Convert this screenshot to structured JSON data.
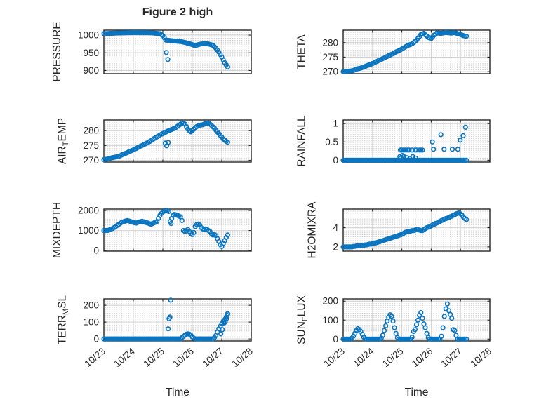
{
  "figure": {
    "title": "Figure 2 high",
    "xlabel": "Time",
    "marker_color": "#0B74BE",
    "axes_color": "#262626",
    "grid_color": "#D2D2D2",
    "minor_grid_color": "#BDBDBD",
    "background": "#FFFFFF"
  },
  "time_axis": {
    "xlim": [
      0,
      5
    ],
    "tick_positions": [
      0,
      1,
      2,
      3,
      4,
      5
    ],
    "tick_labels": [
      "10/23",
      "10/24",
      "10/25",
      "10/26",
      "10/27",
      "10/28"
    ]
  },
  "t_base": [
    0,
    0.05,
    0.1,
    0.15,
    0.2,
    0.25,
    0.3,
    0.35,
    0.4,
    0.45,
    0.5,
    0.55,
    0.6,
    0.65,
    0.7,
    0.75,
    0.8,
    0.85,
    0.9,
    0.95,
    1,
    1.05,
    1.1,
    1.15,
    1.2,
    1.25,
    1.3,
    1.35,
    1.4,
    1.45,
    1.5,
    1.55,
    1.6,
    1.65,
    1.7,
    1.75,
    1.8,
    1.85,
    1.9,
    1.95,
    2,
    2.05,
    2.1,
    2.15,
    2.2,
    2.25,
    2.3,
    2.35,
    2.4,
    2.45,
    2.5,
    2.55,
    2.6,
    2.65,
    2.7,
    2.75,
    2.8,
    2.85,
    2.9,
    2.95,
    3,
    3.05,
    3.1,
    3.15,
    3.2,
    3.25,
    3.3,
    3.35,
    3.4,
    3.45,
    3.5,
    3.55,
    3.6,
    3.65,
    3.7,
    3.75,
    3.8,
    3.85,
    3.9,
    3.95,
    4,
    4.05,
    4.1,
    4.15,
    4.2
  ],
  "chart_data": [
    {
      "type": "scatter",
      "name": "pressure",
      "ylabel": [
        [
          "PRESSURE",
          0
        ]
      ],
      "yticks": [
        900,
        950,
        1000
      ],
      "ylim": [
        891,
        1014
      ],
      "show_xticklabels": false,
      "y": [
        1004,
        1004.2,
        1004.4,
        1004.6,
        1004.8,
        1005,
        1005.2,
        1005.4,
        1005.6,
        1005.8,
        1006,
        1006.1,
        1006.2,
        1006.3,
        1006.4,
        1006.5,
        1006.6,
        1006.7,
        1006.8,
        1006.9,
        1007,
        1007,
        1006.9,
        1006.9,
        1006.8,
        1006.8,
        1006.7,
        1006.7,
        1006.7,
        1006.6,
        1006.6,
        1006.5,
        1006.5,
        1006.1,
        1005.7,
        1005.3,
        1004.8,
        1004.4,
        1004,
        1001.5,
        999,
        992.5,
        986,
        985.5,
        985,
        984.5,
        984,
        983.7,
        983.3,
        983,
        982.7,
        982.3,
        982,
        981,
        980,
        979,
        978,
        976.8,
        975.5,
        974.3,
        973,
        971.5,
        970,
        971.5,
        973,
        974,
        975,
        975.5,
        976,
        975.7,
        975.3,
        975,
        973.7,
        972.3,
        971,
        967,
        963,
        957.5,
        952,
        945,
        938,
        930,
        922,
        916,
        910
      ],
      "x_extra": [
        2.12,
        2.17
      ],
      "y_extra": [
        951,
        931
      ]
    },
    {
      "type": "scatter",
      "name": "theta",
      "ylabel": [
        [
          "THETA",
          0
        ]
      ],
      "yticks": [
        270,
        275,
        280
      ],
      "ylim": [
        269.3,
        284.3
      ],
      "show_xticklabels": false,
      "y": [
        270,
        270,
        270.1,
        270.1,
        270.2,
        270.2,
        270.3,
        270.4,
        270.6,
        270.9,
        271,
        271.1,
        271.2,
        271.4,
        271.6,
        271.8,
        272,
        272.2,
        272.4,
        272.6,
        272.8,
        273,
        273.3,
        273.5,
        273.8,
        274,
        274.2,
        274.5,
        274.7,
        275,
        275.2,
        275.5,
        275.7,
        276,
        276.2,
        276.5,
        276.8,
        277,
        277.3,
        277.5,
        277.8,
        278.1,
        278.4,
        278.7,
        279,
        279.2,
        279.4,
        279.6,
        280,
        280.4,
        280.8,
        281.5,
        282.1,
        282.8,
        283,
        283.2,
        282.7,
        282.3,
        281.8,
        281.6,
        281.4,
        282,
        282.6,
        283,
        283.4,
        283.3,
        283.2,
        283.2,
        283.3,
        283.4,
        283.5,
        283.4,
        283.4,
        283.3,
        283.3,
        283.4,
        283.4,
        283.3,
        283.1,
        283,
        282.8,
        282.6,
        282.4,
        282.3,
        282.2
      ],
      "x_extra": [],
      "y_extra": []
    },
    {
      "type": "scatter",
      "name": "air-temp",
      "ylabel": [
        [
          "AIR",
          0
        ],
        [
          "T",
          1
        ],
        [
          "EMP",
          0
        ]
      ],
      "yticks": [
        270,
        275,
        280
      ],
      "ylim": [
        269.4,
        283.6
      ],
      "show_xticklabels": false,
      "y": [
        270.2,
        270.3,
        270.4,
        270.5,
        270.6,
        270.8,
        270.9,
        271,
        271.1,
        271.2,
        271.3,
        271.5,
        271.8,
        272,
        272.2,
        272.4,
        272.6,
        272.9,
        273.1,
        273.3,
        273.5,
        273.8,
        274,
        274.3,
        274.5,
        274.8,
        275,
        275.3,
        275.5,
        275.8,
        276,
        276.3,
        276.6,
        276.9,
        277.3,
        277.6,
        277.9,
        278.2,
        278.5,
        278.8,
        279,
        279.3,
        279.5,
        279.8,
        280,
        280.2,
        280.4,
        280.6,
        280.8,
        281.1,
        281.5,
        281.8,
        282.2,
        282.6,
        282.4,
        282.2,
        281.4,
        280.5,
        280,
        279.6,
        280,
        280.5,
        281,
        281.4,
        281.6,
        281.8,
        281.9,
        282,
        282.2,
        282.4,
        282.5,
        282.6,
        282.2,
        281.8,
        281.3,
        280.8,
        280.2,
        279.6,
        279,
        278.4,
        277.8,
        277.2,
        276.8,
        276.4,
        276.1
      ],
      "x_extra": [
        2.08,
        2.13,
        2.18
      ],
      "y_extra": [
        275.8,
        274.9,
        276
      ]
    },
    {
      "type": "scatter",
      "name": "rainfall",
      "ylabel": [
        [
          "RAINFALL",
          0
        ]
      ],
      "yticks": [
        0,
        0.5,
        1
      ],
      "ylim": [
        -0.05,
        1.1
      ],
      "show_xticklabels": false,
      "y": [
        0,
        0,
        0,
        0,
        0,
        0,
        0,
        0,
        0,
        0,
        0,
        0,
        0,
        0,
        0,
        0,
        0,
        0,
        0,
        0,
        0,
        0,
        0,
        0,
        0,
        0,
        0,
        0,
        0,
        0,
        0,
        0,
        0,
        0,
        0,
        0,
        0,
        0,
        0,
        0,
        0,
        0,
        0,
        0,
        0,
        0,
        0,
        0,
        0,
        0,
        0,
        0,
        0,
        0,
        0,
        0,
        0,
        0,
        0,
        0,
        0,
        0,
        0,
        0,
        0,
        0,
        0,
        0,
        0,
        0,
        0,
        0,
        0,
        0,
        0,
        0,
        0,
        0,
        0,
        0,
        0,
        0,
        0,
        0,
        0
      ],
      "x_extra": [
        1.93,
        1.97,
        2.02,
        2.07,
        2.17,
        2.27,
        2.37,
        2.47,
        1.95,
        2,
        2.05,
        2.1,
        2.15,
        2.2,
        2.25,
        2.35,
        2.45,
        2.5,
        2.6,
        2.65,
        2.7,
        3.04,
        3.08,
        3.33,
        3.44,
        3.72,
        3.91,
        3.99,
        4.09,
        4.17
      ],
      "y_extra": [
        0.1,
        0.06,
        0.13,
        0.1,
        0.07,
        0.05,
        0.1,
        0.06,
        0.28,
        0.28,
        0.28,
        0.28,
        0.28,
        0.28,
        0.28,
        0.28,
        0.28,
        0.28,
        0.28,
        0.28,
        0.28,
        0.5,
        0.3,
        0.7,
        0.3,
        0.3,
        0.3,
        0.55,
        0.67,
        0.9
      ]
    },
    {
      "type": "scatter",
      "name": "mixdepth",
      "ylabel": [
        [
          "MIXDEPTH",
          0
        ]
      ],
      "yticks": [
        0,
        1000,
        2000
      ],
      "ylim": [
        -30,
        2070
      ],
      "show_xticklabels": false,
      "y": [
        1000,
        1000,
        1005,
        1010,
        1040,
        1070,
        1100,
        1150,
        1200,
        1250,
        1300,
        1350,
        1400,
        1430,
        1460,
        1480,
        1500,
        1475,
        1450,
        1425,
        1400,
        1385,
        1370,
        1400,
        1430,
        1445,
        1460,
        1435,
        1410,
        1390,
        1370,
        1340,
        1310,
        1345,
        1380,
        1415,
        1450,
        1600,
        1750,
        1850,
        1930,
        1960,
        2000,
        1980,
        1950,
        1450,
        1600,
        1750,
        1800,
        1780,
        1750,
        1720,
        1680,
        1500,
        1000,
        950,
        1000,
        1050,
        950,
        850,
        800,
        900,
        1200,
        1300,
        1320,
        1280,
        1150,
        1080,
        1050,
        1080,
        1050,
        1000,
        950,
        850,
        780,
        800,
        750,
        600,
        450,
        300,
        200,
        350,
        500,
        650,
        780
      ],
      "x_extra": [
        2.28
      ],
      "y_extra": [
        1350
      ]
    },
    {
      "type": "scatter",
      "name": "h2omixra",
      "ylabel": [
        [
          "H2OMIXRA",
          0
        ]
      ],
      "yticks": [
        2,
        4
      ],
      "ylim": [
        1.55,
        5.95
      ],
      "show_xticklabels": false,
      "y": [
        2,
        2,
        2,
        2,
        2,
        2,
        2,
        2.05,
        2.05,
        2.1,
        2.1,
        2.1,
        2.15,
        2.15,
        2.15,
        2.2,
        2.2,
        2.25,
        2.3,
        2.3,
        2.35,
        2.4,
        2.4,
        2.45,
        2.5,
        2.55,
        2.6,
        2.65,
        2.7,
        2.75,
        2.8,
        2.85,
        2.9,
        2.95,
        3,
        3.05,
        3.1,
        3.15,
        3.2,
        3.25,
        3.3,
        3.4,
        3.5,
        3.55,
        3.6,
        3.6,
        3.65,
        3.7,
        3.7,
        3.75,
        3.8,
        3.8,
        3.75,
        3.7,
        3.7,
        3.8,
        3.9,
        4,
        4.05,
        4.1,
        4.2,
        4.3,
        4.35,
        4.45,
        4.5,
        4.6,
        4.65,
        4.75,
        4.8,
        4.9,
        4.95,
        5,
        5.05,
        5.15,
        5.2,
        5.3,
        5.35,
        5.45,
        5.5,
        5.55,
        5.45,
        5.3,
        5.1,
        4.95,
        4.85
      ],
      "x_extra": [],
      "y_extra": []
    },
    {
      "type": "scatter",
      "name": "terr-msl",
      "ylabel": [
        [
          "TERR",
          0
        ],
        [
          "M",
          1
        ],
        [
          "SL",
          0
        ]
      ],
      "yticks": [
        0,
        100,
        200
      ],
      "ylim": [
        -12,
        238
      ],
      "show_xticklabels": true,
      "y": [
        0,
        0,
        0,
        0,
        0,
        0,
        0,
        0,
        0,
        0,
        0,
        0,
        0,
        0,
        0,
        0,
        0,
        0,
        0,
        0,
        0,
        0,
        0,
        0,
        0,
        0,
        0,
        0,
        0,
        0,
        0,
        0,
        0,
        0,
        0,
        0,
        0,
        0,
        0,
        0,
        0,
        0,
        0,
        0,
        0,
        0,
        0,
        0,
        0,
        0,
        0,
        0,
        0,
        8,
        15,
        22,
        28,
        30,
        28,
        22,
        12,
        5,
        0,
        0,
        0,
        0,
        0,
        0,
        0,
        0,
        0,
        0,
        0,
        0,
        0,
        8,
        20,
        40,
        60,
        75,
        90,
        105,
        115,
        130,
        148
      ],
      "x_extra": [
        2.18,
        2.21,
        2.24,
        2.27,
        3.97,
        4.02,
        4.08,
        4.12,
        4.16,
        4.18,
        4.2
      ],
      "y_extra": [
        60,
        120,
        130,
        230,
        30,
        55,
        95,
        100,
        120,
        140,
        150
      ]
    },
    {
      "type": "scatter",
      "name": "sun-flux",
      "ylabel": [
        [
          "SUN",
          0
        ],
        [
          "F",
          1
        ],
        [
          "LUX",
          0
        ]
      ],
      "yticks": [
        0,
        100,
        200
      ],
      "ylim": [
        -10,
        212
      ],
      "show_xticklabels": true,
      "y": [
        0,
        0,
        0,
        0,
        0,
        0,
        5,
        15,
        30,
        45,
        55,
        50,
        40,
        25,
        10,
        2,
        0,
        0,
        0,
        0,
        0,
        0,
        0,
        0,
        0,
        0,
        5,
        20,
        45,
        70,
        95,
        115,
        128,
        120,
        95,
        60,
        30,
        8,
        0,
        0,
        0,
        0,
        0,
        0,
        0,
        0,
        0,
        10,
        40,
        50,
        75,
        100,
        125,
        140,
        110,
        80,
        60,
        30,
        8,
        0,
        0,
        0,
        0,
        0,
        0,
        0,
        0,
        15,
        60,
        120,
        160,
        185,
        150,
        130,
        110,
        50,
        45,
        20,
        0,
        0,
        0,
        0,
        0,
        0,
        0
      ],
      "x_extra": [],
      "y_extra": []
    }
  ]
}
